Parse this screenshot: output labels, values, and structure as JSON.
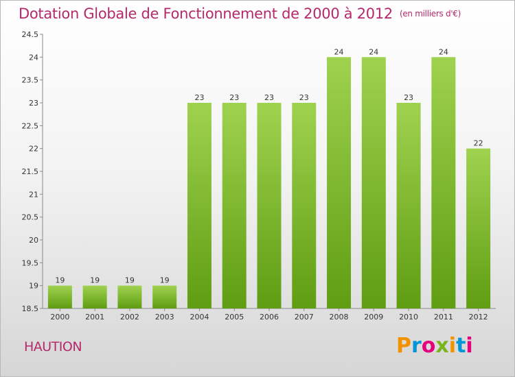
{
  "header": {
    "title": "Dotation Globale de Fonctionnement de 2000 à 2012",
    "subtitle": "(en milliers d'€)"
  },
  "footer": {
    "commune": "HAUTION",
    "logo_text": "Proxiti",
    "logo_colors": [
      "#f39200",
      "#0095d9",
      "#e6007e",
      "#7ab51d",
      "#f39200",
      "#0095d9",
      "#e6007e"
    ]
  },
  "colors": {
    "bar_light": "#9fd24f",
    "bar_dark": "#5f9d12",
    "title": "#b5286c"
  },
  "chart_data": {
    "type": "bar",
    "categories": [
      "2000",
      "2001",
      "2002",
      "2003",
      "2004",
      "2005",
      "2006",
      "2007",
      "2008",
      "2009",
      "2010",
      "2011",
      "2012"
    ],
    "values": [
      19,
      19,
      19,
      19,
      23,
      23,
      23,
      23,
      24,
      24,
      23,
      24,
      22
    ],
    "ylim": [
      18.5,
      24.5
    ],
    "yticks": [
      "18.5",
      "19",
      "19.5",
      "20",
      "20.5",
      "21",
      "21.5",
      "22",
      "22.5",
      "23",
      "23.5",
      "24",
      "24.5"
    ],
    "grid": false
  }
}
